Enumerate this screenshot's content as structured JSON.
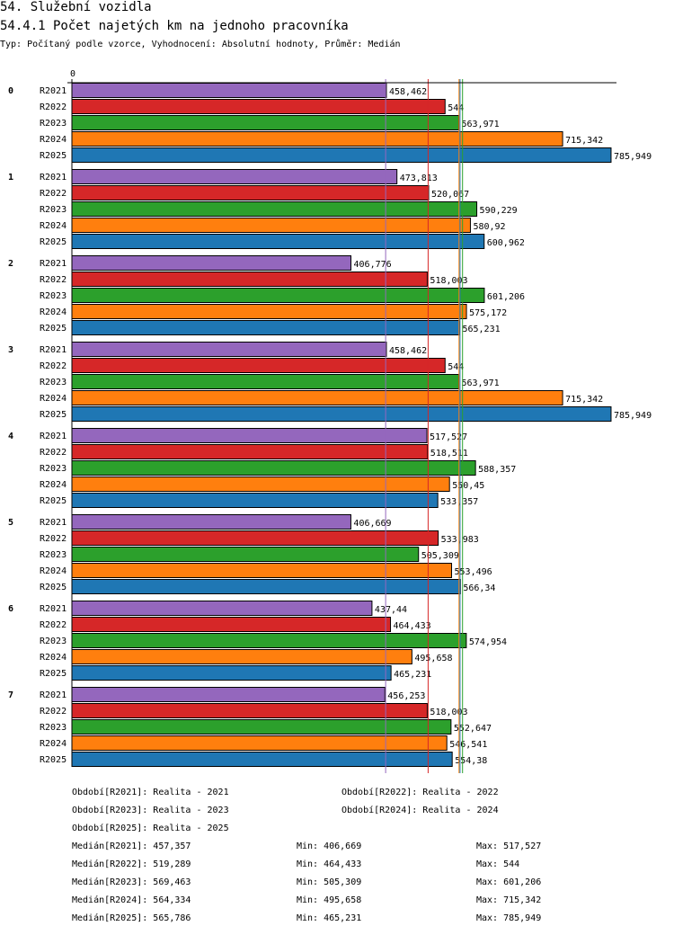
{
  "title": "54. Služební vozidla",
  "subtitle": "54.4.1 Počet najetých km na jednoho pracovníka",
  "meta": "Typ: Počítaný podle vzorce, Vyhodnocení: Absolutní hodnoty, Průměr: Medián",
  "chart_data": {
    "type": "bar",
    "orientation": "horizontal",
    "xlim": [
      0,
      786
    ],
    "x_tick_labels": [
      "0"
    ],
    "groups": [
      "0",
      "1",
      "2",
      "3",
      "4",
      "5",
      "6",
      "7"
    ],
    "series": [
      {
        "name": "R2021",
        "color": "#9467bd",
        "values": [
          458.462,
          473.813,
          406.776,
          458.462,
          517.527,
          406.669,
          437.44,
          456.253
        ],
        "labels": [
          "458,462",
          "473,813",
          "406,776",
          "458,462",
          "517,527",
          "406,669",
          "437,44",
          "456,253"
        ],
        "median": 457.357
      },
      {
        "name": "R2022",
        "color": "#d62728",
        "values": [
          544,
          520.067,
          518.003,
          544,
          518.511,
          533.983,
          464.433,
          518.003
        ],
        "labels": [
          "544",
          "520,067",
          "518,003",
          "544",
          "518,511",
          "533,983",
          "464,433",
          "518,003"
        ],
        "median": 519.289
      },
      {
        "name": "R2023",
        "color": "#2ca02c",
        "values": [
          563.971,
          590.229,
          601.206,
          563.971,
          588.357,
          505.309,
          574.954,
          552.647
        ],
        "labels": [
          "563,971",
          "590,229",
          "601,206",
          "563,971",
          "588,357",
          "505,309",
          "574,954",
          "552,647"
        ],
        "median": 569.463
      },
      {
        "name": "R2024",
        "color": "#ff7f0e",
        "values": [
          715.342,
          580.92,
          575.172,
          715.342,
          550.45,
          553.496,
          495.658,
          546.541
        ],
        "labels": [
          "715,342",
          "580,92",
          "575,172",
          "715,342",
          "550,45",
          "553,496",
          "495,658",
          "546,541"
        ],
        "median": 564.334
      },
      {
        "name": "R2025",
        "color": "#1f77b4",
        "values": [
          785.949,
          600.962,
          565.231,
          785.949,
          533.357,
          566.34,
          465.231,
          554.38
        ],
        "labels": [
          "785,949",
          "600,962",
          "565,231",
          "785,949",
          "533,357",
          "566,34",
          "465,231",
          "554,38"
        ],
        "median": 565.786
      }
    ]
  },
  "legend": [
    "Období[R2021]: Realita - 2021",
    "Období[R2022]: Realita - 2022",
    "Období[R2023]: Realita - 2023",
    "Období[R2024]: Realita - 2024",
    "Období[R2025]: Realita - 2025"
  ],
  "stats": [
    [
      "Medián[R2021]: 457,357",
      "Min: 406,669",
      "Max: 517,527"
    ],
    [
      "Medián[R2022]: 519,289",
      "Min: 464,433",
      "Max: 544"
    ],
    [
      "Medián[R2023]: 569,463",
      "Min: 505,309",
      "Max: 601,206"
    ],
    [
      "Medián[R2024]: 564,334",
      "Min: 495,658",
      "Max: 715,342"
    ],
    [
      "Medián[R2025]: 565,786",
      "Min: 465,231",
      "Max: 785,949"
    ]
  ]
}
